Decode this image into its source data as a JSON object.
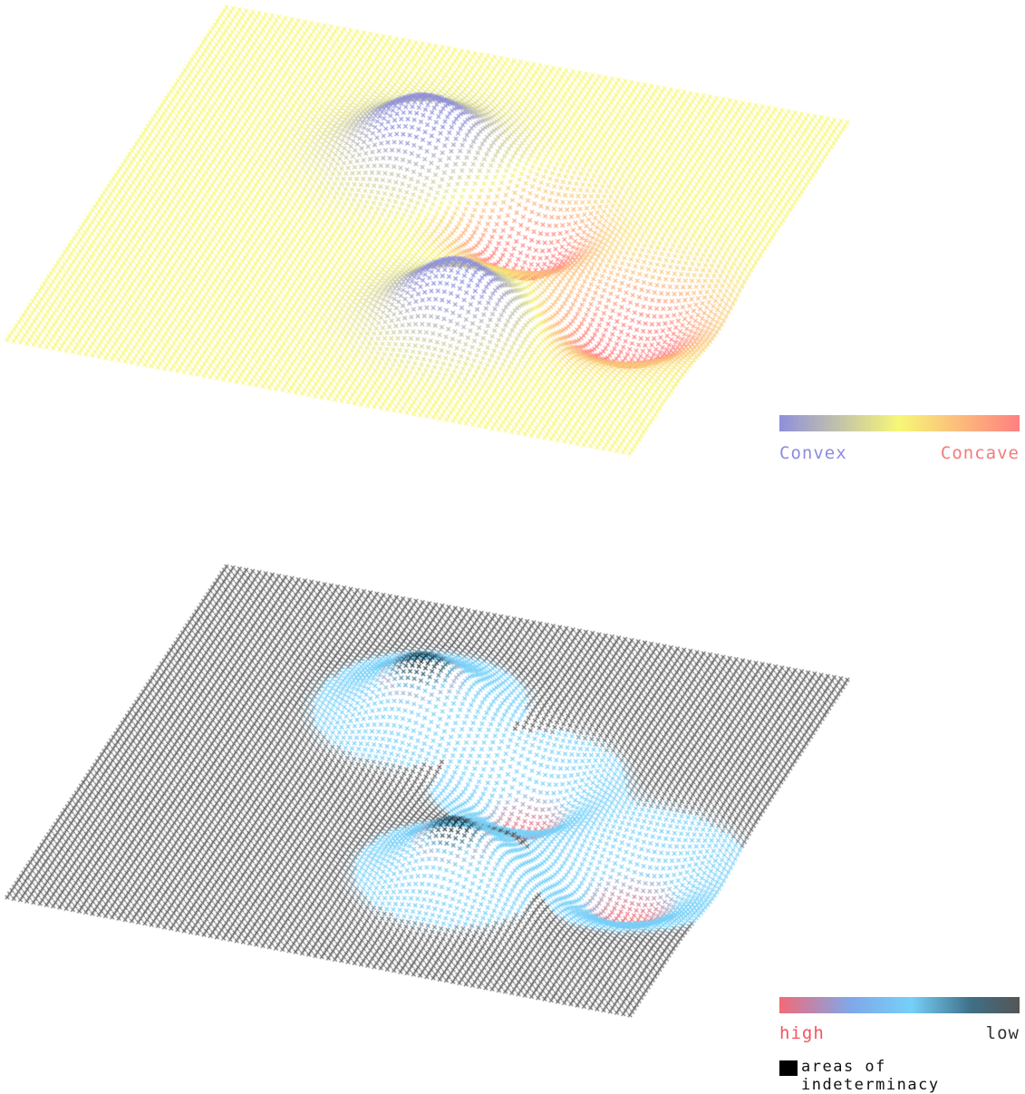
{
  "legends": {
    "curvature": {
      "left_label": "Convex",
      "right_label": "Concave",
      "colors": {
        "convex": "#8f8fdc",
        "flat": "#f7f777",
        "concave": "#ff8080"
      }
    },
    "determinacy": {
      "left_label": "high",
      "right_label": "low",
      "swatch_label": "areas of indeterminacy",
      "colors": {
        "high": "#f26a78",
        "mid": "#76d0f8",
        "low": "#555555",
        "indeterminacy": "#000000"
      }
    }
  }
}
